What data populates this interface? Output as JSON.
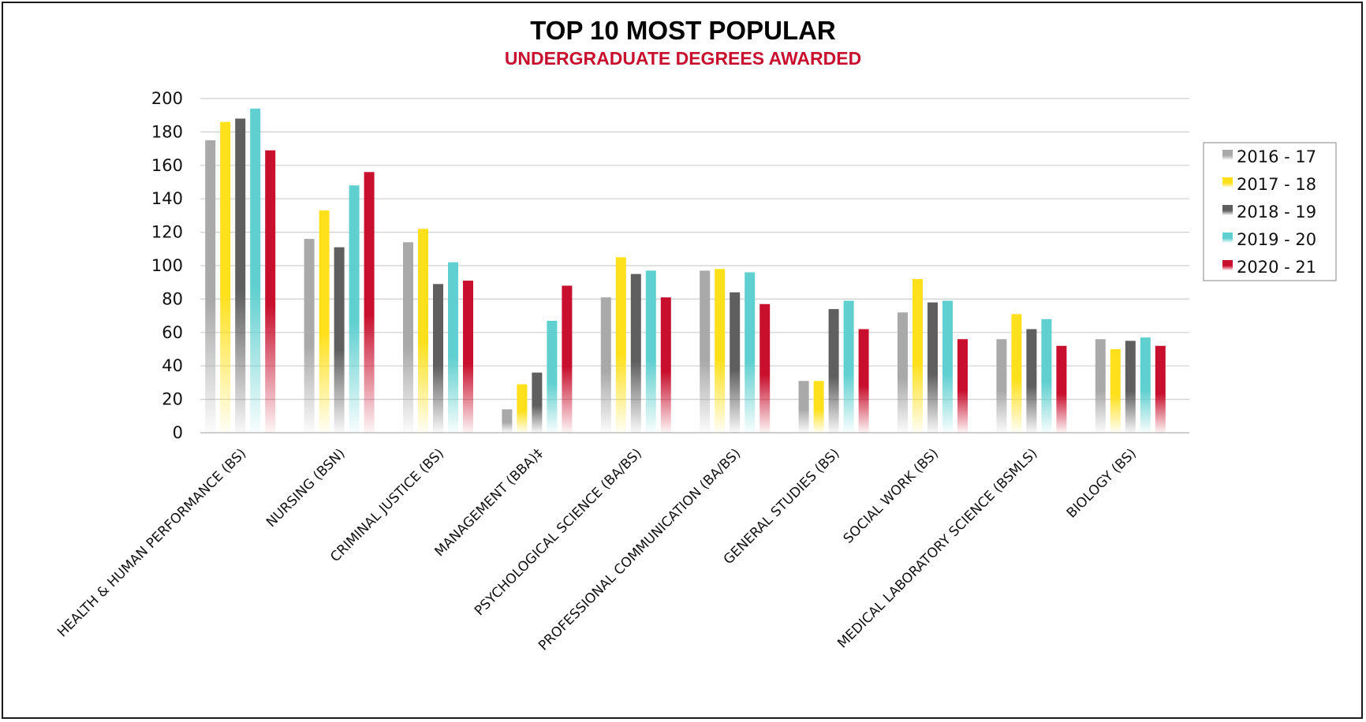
{
  "colors": {
    "grid": "#cfcfcf",
    "axis": "#bdbdbd",
    "title": "#000000",
    "subtitle": "#c8102e",
    "frame": "#1a1a1a"
  },
  "chart_data": {
    "type": "bar",
    "title": "TOP 10 MOST POPULAR",
    "subtitle": "UNDERGRADUATE DEGREES AWARDED",
    "xlabel": "",
    "ylabel": "",
    "ylim": [
      0,
      200
    ],
    "yticks": [
      0,
      20,
      40,
      60,
      80,
      100,
      120,
      140,
      160,
      180,
      200
    ],
    "grid": true,
    "legend_position": "right",
    "categories": [
      "HEALTH & HUMAN PERFORMANCE (BS)",
      "NURSING (BSN)",
      "CRIMINAL JUSTICE (BS)",
      "MANAGEMENT (BBA)‡",
      "PSYCHOLOGICAL SCIENCE  (BA/BS)",
      "PROFESSIONAL COMMUNICATION (BA/BS)",
      "GENERAL STUDIES (BS)",
      "SOCIAL WORK (BS)",
      "MEDICAL LABORATORY SCIENCE (BSMLS)",
      "BIOLOGY (BS)"
    ],
    "series": [
      {
        "name": "2016 - 17",
        "color": "#a9a9a9",
        "values": [
          175,
          116,
          114,
          14,
          81,
          97,
          31,
          72,
          56,
          56
        ]
      },
      {
        "name": "2017 - 18",
        "color": "#ffe01b",
        "values": [
          186,
          133,
          122,
          29,
          105,
          98,
          31,
          92,
          71,
          50
        ]
      },
      {
        "name": "2018 - 19",
        "color": "#5f5f5f",
        "values": [
          188,
          111,
          89,
          36,
          95,
          84,
          74,
          78,
          62,
          55
        ]
      },
      {
        "name": "2019 - 20",
        "color": "#5fcfcf",
        "values": [
          194,
          148,
          102,
          67,
          97,
          96,
          79,
          79,
          68,
          57
        ]
      },
      {
        "name": "2020 - 21",
        "color": "#c8102e",
        "values": [
          169,
          156,
          91,
          88,
          81,
          77,
          62,
          56,
          52,
          52
        ]
      }
    ]
  }
}
